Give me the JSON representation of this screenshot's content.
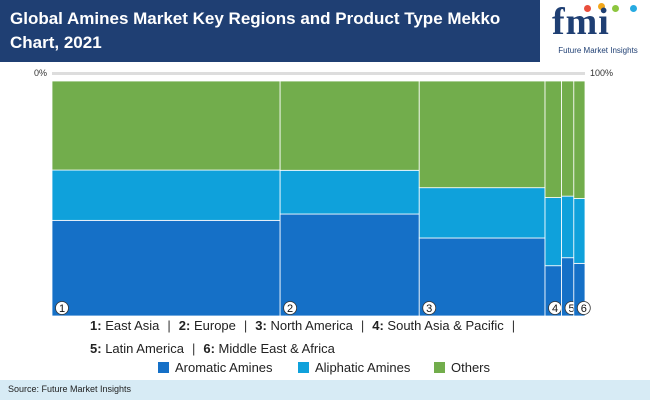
{
  "header": {
    "title": "Global Amines Market Key Regions and Product Type Mekko Chart, 2021",
    "logo_text": "fmi",
    "logo_subtitle": "Future Market Insights",
    "colors": {
      "background": "#1f3f73",
      "text": "#ffffff"
    }
  },
  "axis": {
    "left_label": "0%",
    "right_label": "100%"
  },
  "chart_data": {
    "type": "mekko",
    "title": "Global Amines Market Key Regions and Product Type Mekko Chart, 2021",
    "categories": [
      "1",
      "2",
      "3",
      "4",
      "5",
      "6"
    ],
    "category_names": [
      "East Asia",
      "Europe",
      "North America",
      "South Asia & Pacific",
      "Latin America",
      "Middle East & Africa"
    ],
    "column_widths_percent": [
      42.8,
      26.1,
      23.6,
      3.1,
      2.3,
      2.1
    ],
    "series": [
      {
        "name": "Aromatic Amines",
        "color": "#1570c7",
        "values": [
          40.7,
          43.4,
          33.2,
          21.4,
          24.8,
          22.4
        ]
      },
      {
        "name": "Aliphatic Amines",
        "color": "#0fa1db",
        "values": [
          21.4,
          18.6,
          21.4,
          29.0,
          26.2,
          27.6
        ]
      },
      {
        "name": "Others",
        "color": "#72ad4c",
        "values": [
          37.9,
          38.0,
          45.4,
          49.6,
          49.0,
          50.0
        ]
      }
    ],
    "ylim": [
      0,
      100
    ],
    "grid": false,
    "legend_position": "bottom"
  },
  "region_legend": {
    "separator": "|",
    "items": [
      {
        "num": "1:",
        "name": "East Asia"
      },
      {
        "num": "2:",
        "name": "Europe"
      },
      {
        "num": "3:",
        "name": "North America"
      },
      {
        "num": "4:",
        "name": "South Asia & Pacific"
      },
      {
        "num": "5:",
        "name": "Latin America"
      },
      {
        "num": "6:",
        "name": "Middle East & Africa"
      }
    ]
  },
  "series_legend": {
    "items": [
      {
        "label": "Aromatic Amines",
        "color": "#1570c7"
      },
      {
        "label": "Aliphatic Amines",
        "color": "#0fa1db"
      },
      {
        "label": "Others",
        "color": "#72ad4c"
      }
    ]
  },
  "footer": {
    "source": "Source: Future Market Insights"
  }
}
